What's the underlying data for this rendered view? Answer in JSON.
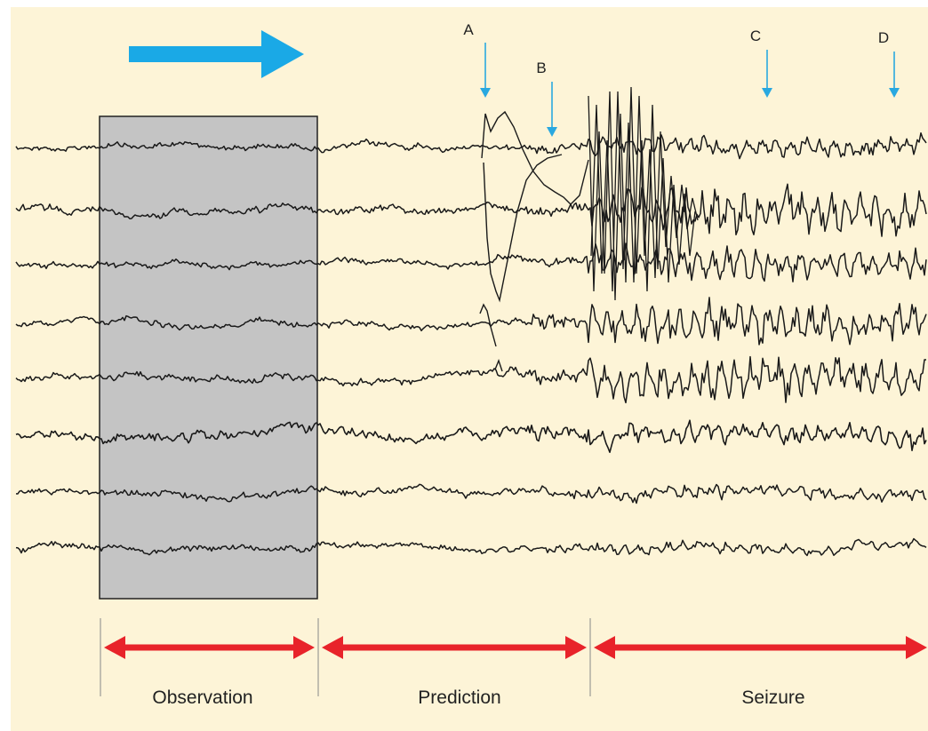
{
  "colors": {
    "panel_background": "#fdf4d7",
    "observation_box": "#c4c4c4",
    "trace": "#1a1a1a",
    "marker_arrow": "#29a8e0",
    "direction_arrow": "#1aa9e6",
    "phase_arrow": "#e8232a",
    "divider": "#888888"
  },
  "channel_count": 8,
  "markers": [
    {
      "label": "A"
    },
    {
      "label": "B"
    },
    {
      "label": "C"
    },
    {
      "label": "D"
    }
  ],
  "phases": [
    {
      "label": "Observation"
    },
    {
      "label": "Prediction"
    },
    {
      "label": "Seizure"
    }
  ],
  "icons": {
    "direction_arrow": "right-arrow-icon",
    "phase_arrows": "double-headed-arrow-icon"
  }
}
